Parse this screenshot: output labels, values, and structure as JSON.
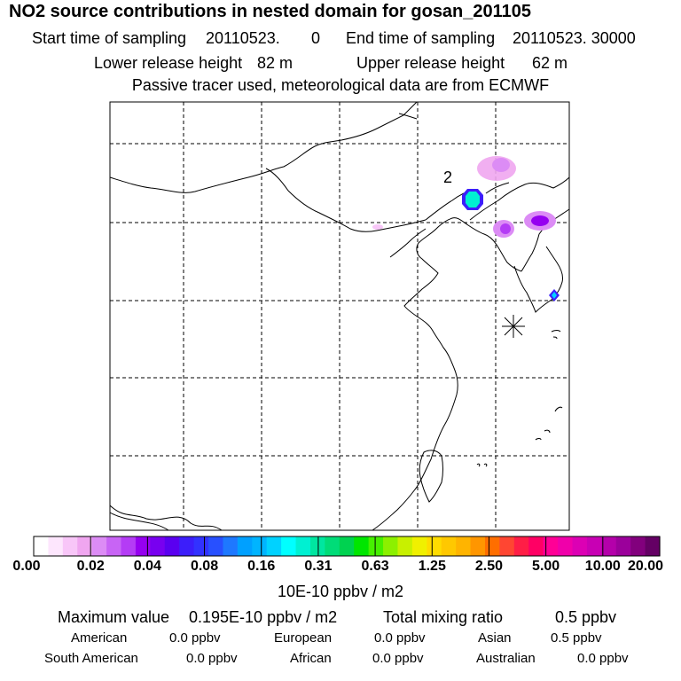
{
  "header": {
    "title": "NO2 source contributions in nested domain for gosan_201105",
    "start_label": "Start time of sampling",
    "start_value": "20110523.",
    "start_hour": "0",
    "end_label": "End time of sampling",
    "end_value": "20110523. 30000",
    "lower_label": "Lower release height",
    "lower_value": "82 m",
    "upper_label": "Upper release height",
    "upper_value": "62 m",
    "note": "Passive tracer used, meteorological data are from ECMWF"
  },
  "map": {
    "release_label": "2",
    "receptor_marker": "asterisk-station-marker"
  },
  "colorbar": {
    "colors": [
      "#ffffff",
      "#fde6fd",
      "#f8c6f8",
      "#f0a6f0",
      "#dc8cf5",
      "#c864f5",
      "#b43cf5",
      "#9600f0",
      "#7800f0",
      "#5a00f0",
      "#3c1efa",
      "#3232ff",
      "#2850ff",
      "#1e78ff",
      "#00a0ff",
      "#00b4ff",
      "#00d2ff",
      "#00ffff",
      "#00f0d2",
      "#00e6a0",
      "#00dc78",
      "#00d250",
      "#00e600",
      "#46f000",
      "#8cf000",
      "#c8f000",
      "#f0f000",
      "#ffdc00",
      "#ffc800",
      "#ffb400",
      "#ff9600",
      "#ff6e00",
      "#ff4632",
      "#ff1e46",
      "#ff0064",
      "#ff0096",
      "#f000aa",
      "#dc00b4",
      "#c800b4",
      "#b400aa",
      "#9b009b",
      "#82007d",
      "#640064"
    ],
    "ticks": [
      "0.00",
      "0.02",
      "0.04",
      "0.08",
      "0.16",
      "0.31",
      "0.63",
      "1.25",
      "2.50",
      "5.00",
      "10.00",
      "20.00"
    ],
    "unit": "10E-10 ppbv / m2"
  },
  "summary": {
    "max_label": "Maximum value",
    "max_value": "0.195E-10 ppbv / m2",
    "total_label": "Total mixing ratio",
    "total_value": "0.5 ppbv"
  },
  "groups": [
    {
      "name": "American",
      "value": "0.0 ppbv"
    },
    {
      "name": "European",
      "value": "0.0 ppbv"
    },
    {
      "name": "Asian",
      "value": "0.5 ppbv"
    },
    {
      "name": "South American",
      "value": "0.0 ppbv"
    },
    {
      "name": "African",
      "value": "0.0 ppbv"
    },
    {
      "name": "Australian",
      "value": "0.0 ppbv"
    }
  ]
}
